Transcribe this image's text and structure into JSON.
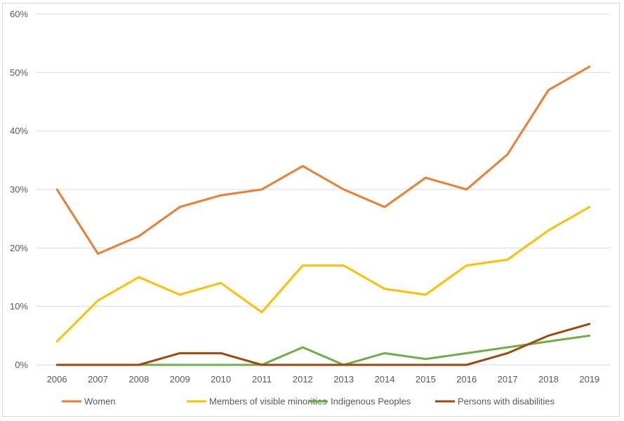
{
  "chart_data": {
    "type": "line",
    "title": "",
    "xlabel": "",
    "ylabel": "",
    "categories": [
      "2006",
      "2007",
      "2008",
      "2009",
      "2010",
      "2011",
      "2012",
      "2013",
      "2014",
      "2015",
      "2016",
      "2017",
      "2018",
      "2019"
    ],
    "ylim": [
      0,
      60
    ],
    "yticks": [
      0,
      10,
      20,
      30,
      40,
      50,
      60
    ],
    "ytick_labels": [
      "0%",
      "10%",
      "20%",
      "30%",
      "40%",
      "50%",
      "60%"
    ],
    "grid": true,
    "legend_position": "bottom",
    "series": [
      {
        "name": "Women",
        "color": "#ED7D31",
        "values": [
          30,
          19,
          22,
          27,
          29,
          30,
          34,
          30,
          27,
          32,
          30,
          36,
          47,
          51
        ]
      },
      {
        "name": "Members of visible minorities",
        "color": "#FFC000",
        "values": [
          4,
          11,
          15,
          12,
          14,
          9,
          17,
          17,
          13,
          12,
          17,
          18,
          23,
          27
        ]
      },
      {
        "name": "Indigenous Peoples",
        "color": "#70AD47",
        "values": [
          null,
          null,
          0,
          0,
          0,
          0,
          3,
          0,
          2,
          1,
          2,
          3,
          4,
          5
        ]
      },
      {
        "name": "Persons with disabilities",
        "color": "#9E480E",
        "values": [
          0,
          0,
          0,
          2,
          2,
          0,
          0,
          0,
          0,
          0,
          0,
          2,
          5,
          7
        ]
      }
    ]
  }
}
